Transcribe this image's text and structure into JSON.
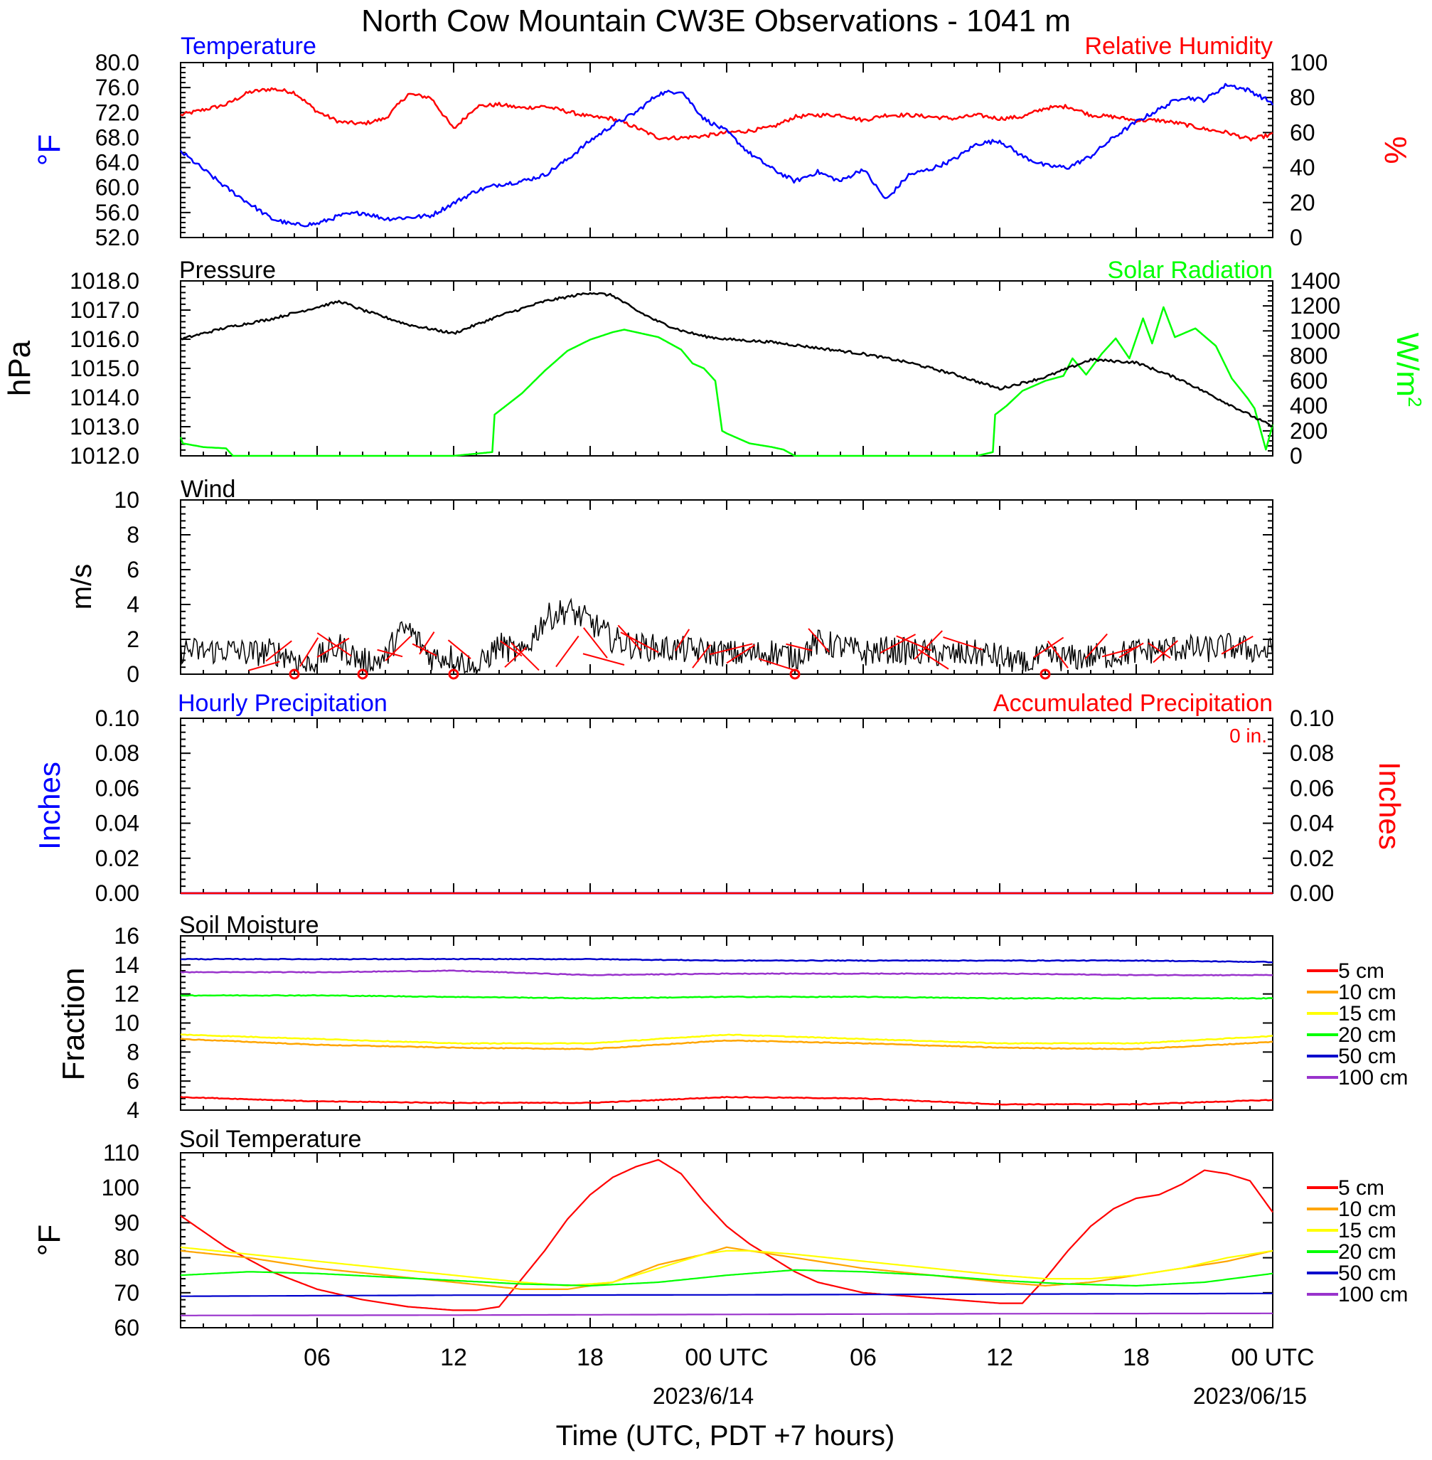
{
  "title": "North Cow Mountain CW3E Observations - 1041 m",
  "xaxis": {
    "label": "Time (UTC, PDT +7 hours)",
    "ticks": [
      "06",
      "12",
      "18",
      "00 UTC",
      "06",
      "12",
      "18",
      "00 UTC"
    ],
    "dates": [
      "2023/6/14",
      "2023/06/15"
    ]
  },
  "colors": {
    "temperature": "#0000ff",
    "humidity": "#ff0000",
    "pressure": "#000000",
    "solar": "#00ff00",
    "wind_speed": "#000000",
    "wind_barbs": "#ff0000",
    "precip_hourly": "#0000ff",
    "precip_accum": "#ff0000",
    "5cm": "#ff0000",
    "10cm": "#ffa500",
    "15cm": "#ffff00",
    "20cm": "#00ff00",
    "50cm": "#0000cc",
    "100cm": "#9933cc"
  },
  "legend_items": [
    "5 cm",
    "10 cm",
    "15 cm",
    "20 cm",
    "50 cm",
    "100 cm"
  ],
  "chart_data": [
    {
      "type": "line",
      "panel": "temperature-humidity",
      "left_title": "Temperature",
      "right_title": "Relative Humidity",
      "ylabel_left": "°F",
      "ylabel_right": "%",
      "ylim_left": [
        52,
        80
      ],
      "ylim_right": [
        0,
        100
      ],
      "yticks_left": [
        "80.0",
        "76.0",
        "72.0",
        "68.0",
        "64.0",
        "60.0",
        "56.0",
        "52.0"
      ],
      "yticks_right": [
        "100",
        "80",
        "60",
        "40",
        "20",
        "0"
      ],
      "x_hours": [
        0,
        2,
        3,
        4,
        5,
        6,
        7,
        8,
        9,
        10,
        11,
        12,
        13,
        14,
        15,
        16,
        17,
        18,
        19,
        20,
        21,
        22,
        23,
        24,
        25,
        26,
        27,
        28,
        29,
        30,
        31,
        32,
        33,
        34,
        35,
        36,
        37,
        38,
        39,
        40,
        41,
        42,
        43,
        44,
        45,
        46,
        47,
        48
      ],
      "series": [
        {
          "name": "Temperature",
          "axis": "left",
          "color_key": "temperature",
          "values": [
            65.8,
            60.0,
            57.5,
            55.0,
            54.0,
            54.2,
            55.5,
            56.0,
            55.0,
            55.2,
            55.5,
            57.5,
            59.5,
            60.5,
            61.0,
            62.0,
            64.5,
            67.5,
            70.0,
            72.0,
            75.0,
            75.5,
            71.0,
            69.0,
            65.5,
            63.0,
            61.0,
            62.5,
            61.0,
            63.0,
            58.0,
            62.0,
            63.0,
            64.5,
            67.0,
            67.5,
            65.0,
            63.5,
            63.2,
            65.0,
            68.0,
            70.5,
            72.5,
            74.5,
            74.0,
            76.5,
            75.5,
            73.5
          ]
        },
        {
          "name": "Relative Humidity",
          "axis": "right",
          "color_key": "humidity",
          "values": [
            70,
            76,
            83,
            85,
            83,
            72,
            66,
            65,
            68,
            82,
            80,
            62,
            75,
            76,
            74,
            75,
            72,
            69,
            68,
            63,
            57,
            57,
            58,
            60,
            61,
            63,
            69,
            70,
            70,
            67,
            70,
            70,
            69,
            68,
            70,
            68,
            69,
            74,
            75,
            70,
            69,
            67,
            67,
            65,
            62,
            60,
            56,
            59
          ]
        }
      ]
    },
    {
      "type": "line",
      "panel": "pressure-solar",
      "left_title": "Pressure",
      "right_title": "Solar Radiation",
      "ylabel_left": "hPa",
      "ylabel_right": "W/m",
      "ylabel_right_sup": "2",
      "ylim_left": [
        1012,
        1018
      ],
      "ylim_right": [
        0,
        1400
      ],
      "yticks_left": [
        "1018.0",
        "1017.0",
        "1016.0",
        "1015.0",
        "1014.0",
        "1013.0",
        "1012.0"
      ],
      "yticks_right": [
        "1400",
        "1200",
        "1000",
        "800",
        "600",
        "400",
        "200",
        "0"
      ],
      "series": [
        {
          "name": "Pressure",
          "axis": "left",
          "color_key": "pressure",
          "x_hours": [
            0,
            2,
            4,
            6,
            7,
            8,
            10,
            12,
            14,
            16,
            18,
            19,
            20,
            21,
            22,
            23,
            24,
            26,
            28,
            30,
            32,
            34,
            36,
            38,
            40,
            42,
            44,
            46,
            48
          ],
          "values": [
            1016.0,
            1016.4,
            1016.7,
            1017.1,
            1017.3,
            1017.0,
            1016.5,
            1016.2,
            1016.8,
            1017.3,
            1017.6,
            1017.5,
            1017.0,
            1016.6,
            1016.3,
            1016.1,
            1016.0,
            1015.9,
            1015.7,
            1015.5,
            1015.2,
            1014.8,
            1014.3,
            1014.7,
            1015.3,
            1015.2,
            1014.6,
            1013.8,
            1013.0
          ]
        },
        {
          "name": "Solar Radiation",
          "axis": "right",
          "color_key": "solar",
          "x_hours": [
            0,
            0.1,
            1,
            2,
            2.3,
            12,
            13.7,
            13.8,
            15,
            16,
            17,
            18,
            19,
            19.5,
            20,
            21,
            22,
            22.5,
            23,
            23.5,
            23.8,
            24,
            25,
            26,
            26.5,
            27,
            35,
            35.7,
            35.8,
            36.3,
            37.0,
            38.0,
            38.8,
            39.2,
            39.8,
            40.5,
            41.1,
            41.7,
            42.3,
            42.7,
            43.2,
            43.7,
            44.6,
            45.5,
            46.2,
            46.9,
            47.2,
            47.7,
            48
          ],
          "values": [
            150,
            100,
            70,
            60,
            0,
            0,
            30,
            330,
            500,
            680,
            840,
            930,
            990,
            1010,
            990,
            950,
            850,
            740,
            700,
            600,
            200,
            180,
            100,
            70,
            50,
            0,
            0,
            30,
            330,
            400,
            520,
            600,
            640,
            780,
            650,
            820,
            940,
            780,
            1100,
            900,
            1190,
            950,
            1020,
            880,
            620,
            460,
            380,
            50,
            250
          ]
        }
      ]
    },
    {
      "type": "line",
      "panel": "wind",
      "left_title": "Wind",
      "ylabel_left": "m/s",
      "ylim_left": [
        0,
        10
      ],
      "yticks_left": [
        "10",
        "8",
        "6",
        "4",
        "2",
        "0"
      ],
      "series": [
        {
          "name": "Wind",
          "axis": "left",
          "color_key": "wind_speed",
          "x_hours": [
            0,
            1,
            2,
            3,
            4,
            5,
            5.5,
            6,
            7,
            8,
            9,
            9.5,
            10,
            11,
            12,
            13,
            13.5,
            14,
            15,
            16,
            17,
            18,
            19,
            20,
            21,
            22,
            23,
            24,
            25,
            26,
            27,
            28,
            29,
            30,
            31,
            32,
            33,
            34,
            35,
            36,
            37,
            38,
            39,
            40,
            41,
            42,
            43,
            44,
            45,
            46,
            47,
            48
          ],
          "values": [
            1.4,
            1.3,
            1.4,
            1.2,
            1.3,
            1.0,
            0.4,
            0.9,
            1.6,
            0.7,
            0.9,
            2.2,
            2.6,
            1.0,
            1.0,
            0.2,
            1.0,
            1.7,
            1.1,
            3.2,
            3.7,
            3.0,
            2.0,
            1.6,
            1.5,
            1.4,
            1.3,
            1.2,
            1.1,
            1.3,
            1.0,
            1.8,
            1.6,
            1.2,
            1.4,
            1.3,
            1.2,
            1.1,
            1.2,
            1.0,
            0.5,
            1.0,
            0.9,
            1.0,
            1.1,
            1.3,
            1.4,
            1.5,
            1.4,
            1.6,
            1.4,
            1.3
          ]
        }
      ],
      "calm_hours": [
        5,
        8,
        12,
        27,
        38
      ]
    },
    {
      "type": "line",
      "panel": "precipitation",
      "left_title": "Hourly Precipitation",
      "right_title": "Accumulated Precipitation",
      "annotation": "0 in.",
      "ylabel_left": "Inches",
      "ylabel_right": "Inches",
      "ylim_left": [
        0,
        0.1
      ],
      "ylim_right": [
        0,
        0.1
      ],
      "yticks_left": [
        "0.10",
        "0.08",
        "0.06",
        "0.04",
        "0.02",
        "0.00"
      ],
      "yticks_right": [
        "0.10",
        "0.08",
        "0.06",
        "0.04",
        "0.02",
        "0.00"
      ],
      "series": [
        {
          "name": "Hourly Precipitation",
          "axis": "left",
          "color_key": "precip_hourly",
          "x_hours": [
            0,
            48
          ],
          "values": [
            0,
            0
          ]
        },
        {
          "name": "Accumulated Precipitation",
          "axis": "right",
          "color_key": "precip_accum",
          "x_hours": [
            0,
            48
          ],
          "values": [
            0,
            0
          ]
        }
      ]
    },
    {
      "type": "line",
      "panel": "soil-moisture",
      "left_title": "Soil Moisture",
      "ylabel_left": "Fraction",
      "ylim_left": [
        4,
        16
      ],
      "yticks_left": [
        "16",
        "14",
        "12",
        "10",
        "8",
        "6",
        "4"
      ],
      "x_hours": [
        0,
        6,
        12,
        18,
        24,
        30,
        36,
        42,
        48
      ],
      "series": [
        {
          "name": "5 cm",
          "color_key": "5cm",
          "values": [
            4.9,
            4.6,
            4.5,
            4.5,
            4.9,
            4.8,
            4.4,
            4.4,
            4.7
          ]
        },
        {
          "name": "10 cm",
          "color_key": "10cm",
          "values": [
            8.9,
            8.5,
            8.3,
            8.2,
            8.8,
            8.6,
            8.3,
            8.2,
            8.7
          ]
        },
        {
          "name": "15 cm",
          "color_key": "15cm",
          "values": [
            9.2,
            8.9,
            8.6,
            8.6,
            9.2,
            8.9,
            8.6,
            8.6,
            9.1
          ]
        },
        {
          "name": "20 cm",
          "color_key": "20cm",
          "values": [
            11.9,
            11.9,
            11.8,
            11.7,
            11.8,
            11.8,
            11.7,
            11.7,
            11.7
          ]
        },
        {
          "name": "50 cm",
          "color_key": "50cm",
          "values": [
            14.4,
            14.4,
            14.4,
            14.4,
            14.3,
            14.3,
            14.3,
            14.3,
            14.2
          ]
        },
        {
          "name": "100 cm",
          "color_key": "100cm",
          "values": [
            13.5,
            13.5,
            13.6,
            13.3,
            13.4,
            13.4,
            13.4,
            13.3,
            13.3
          ]
        }
      ]
    },
    {
      "type": "line",
      "panel": "soil-temperature",
      "left_title": "Soil Temperature",
      "ylabel_left": "°F",
      "ylim_left": [
        60,
        110
      ],
      "yticks_left": [
        "110",
        "100",
        "90",
        "80",
        "70",
        "60"
      ],
      "series": [
        {
          "name": "5 cm",
          "color_key": "5cm",
          "x_hours": [
            0,
            2,
            4,
            6,
            8,
            10,
            12,
            13,
            14,
            15,
            16,
            17,
            18,
            19,
            20,
            21,
            22,
            23,
            24,
            25,
            26,
            27,
            28,
            30,
            32,
            34,
            36,
            37,
            38,
            39,
            40,
            41,
            42,
            43,
            44,
            45,
            46,
            47,
            48
          ],
          "values": [
            92,
            83,
            76,
            71,
            68,
            66,
            65,
            65,
            66,
            74,
            82,
            91,
            98,
            103,
            106,
            108,
            104,
            96,
            89,
            84,
            80,
            76,
            73,
            70,
            69,
            68,
            67,
            67,
            74,
            82,
            89,
            94,
            97,
            98,
            101,
            105,
            104,
            102,
            93
          ]
        },
        {
          "name": "10 cm",
          "color_key": "10cm",
          "x_hours": [
            0,
            3,
            6,
            9,
            12,
            15,
            17,
            19,
            21,
            23,
            24,
            25,
            27,
            30,
            33,
            36,
            38,
            40,
            42,
            44,
            46,
            48
          ],
          "values": [
            82,
            80,
            77,
            75,
            73,
            71,
            71,
            73,
            78,
            81,
            83,
            82,
            80,
            77,
            75,
            73,
            72,
            73,
            75,
            77,
            79,
            82
          ]
        },
        {
          "name": "15 cm",
          "color_key": "15cm",
          "x_hours": [
            0,
            3,
            6,
            9,
            12,
            15,
            17,
            19,
            21,
            23,
            24,
            25,
            27,
            30,
            33,
            36,
            38,
            40,
            42,
            44,
            46,
            48
          ],
          "values": [
            83,
            81,
            79,
            77,
            75,
            73,
            72,
            73,
            77,
            81,
            82,
            82,
            81,
            79,
            77,
            75,
            74,
            74,
            75,
            77,
            80,
            82
          ]
        },
        {
          "name": "20 cm",
          "color_key": "20cm",
          "x_hours": [
            0,
            3,
            6,
            9,
            12,
            15,
            18,
            21,
            24,
            27,
            30,
            33,
            36,
            39,
            42,
            45,
            48
          ],
          "values": [
            75,
            76,
            75.5,
            74.5,
            73.5,
            72.5,
            72,
            73,
            75,
            76.5,
            76,
            75,
            73.5,
            72.5,
            72,
            73,
            75.5
          ]
        },
        {
          "name": "50 cm",
          "color_key": "50cm",
          "x_hours": [
            0,
            12,
            24,
            36,
            48
          ],
          "values": [
            69,
            69.3,
            69.4,
            69.6,
            69.8
          ]
        },
        {
          "name": "100 cm",
          "color_key": "100cm",
          "x_hours": [
            0,
            12,
            24,
            36,
            48
          ],
          "values": [
            63.5,
            63.6,
            63.8,
            64,
            64.1
          ]
        }
      ]
    }
  ]
}
